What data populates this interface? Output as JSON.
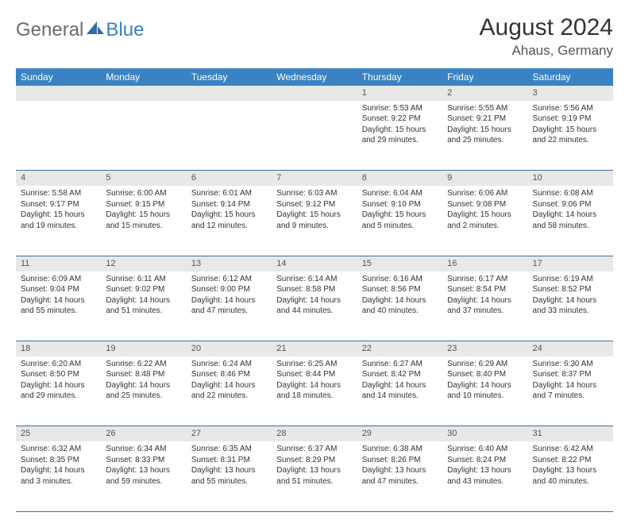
{
  "brand": {
    "part1": "General",
    "part2": "Blue"
  },
  "title": "August 2024",
  "location": "Ahaus, Germany",
  "header_bg": "#3b82c4",
  "header_fg": "#ffffff",
  "daynum_bg": "#e8e8e8",
  "day_headers": [
    "Sunday",
    "Monday",
    "Tuesday",
    "Wednesday",
    "Thursday",
    "Friday",
    "Saturday"
  ],
  "weeks": [
    [
      null,
      null,
      null,
      null,
      {
        "n": "1",
        "sr": "5:53 AM",
        "ss": "9:22 PM",
        "dl": "15 hours and 29 minutes."
      },
      {
        "n": "2",
        "sr": "5:55 AM",
        "ss": "9:21 PM",
        "dl": "15 hours and 25 minutes."
      },
      {
        "n": "3",
        "sr": "5:56 AM",
        "ss": "9:19 PM",
        "dl": "15 hours and 22 minutes."
      }
    ],
    [
      {
        "n": "4",
        "sr": "5:58 AM",
        "ss": "9:17 PM",
        "dl": "15 hours and 19 minutes."
      },
      {
        "n": "5",
        "sr": "6:00 AM",
        "ss": "9:15 PM",
        "dl": "15 hours and 15 minutes."
      },
      {
        "n": "6",
        "sr": "6:01 AM",
        "ss": "9:14 PM",
        "dl": "15 hours and 12 minutes."
      },
      {
        "n": "7",
        "sr": "6:03 AM",
        "ss": "9:12 PM",
        "dl": "15 hours and 9 minutes."
      },
      {
        "n": "8",
        "sr": "6:04 AM",
        "ss": "9:10 PM",
        "dl": "15 hours and 5 minutes."
      },
      {
        "n": "9",
        "sr": "6:06 AM",
        "ss": "9:08 PM",
        "dl": "15 hours and 2 minutes."
      },
      {
        "n": "10",
        "sr": "6:08 AM",
        "ss": "9:06 PM",
        "dl": "14 hours and 58 minutes."
      }
    ],
    [
      {
        "n": "11",
        "sr": "6:09 AM",
        "ss": "9:04 PM",
        "dl": "14 hours and 55 minutes."
      },
      {
        "n": "12",
        "sr": "6:11 AM",
        "ss": "9:02 PM",
        "dl": "14 hours and 51 minutes."
      },
      {
        "n": "13",
        "sr": "6:12 AM",
        "ss": "9:00 PM",
        "dl": "14 hours and 47 minutes."
      },
      {
        "n": "14",
        "sr": "6:14 AM",
        "ss": "8:58 PM",
        "dl": "14 hours and 44 minutes."
      },
      {
        "n": "15",
        "sr": "6:16 AM",
        "ss": "8:56 PM",
        "dl": "14 hours and 40 minutes."
      },
      {
        "n": "16",
        "sr": "6:17 AM",
        "ss": "8:54 PM",
        "dl": "14 hours and 37 minutes."
      },
      {
        "n": "17",
        "sr": "6:19 AM",
        "ss": "8:52 PM",
        "dl": "14 hours and 33 minutes."
      }
    ],
    [
      {
        "n": "18",
        "sr": "6:20 AM",
        "ss": "8:50 PM",
        "dl": "14 hours and 29 minutes."
      },
      {
        "n": "19",
        "sr": "6:22 AM",
        "ss": "8:48 PM",
        "dl": "14 hours and 25 minutes."
      },
      {
        "n": "20",
        "sr": "6:24 AM",
        "ss": "8:46 PM",
        "dl": "14 hours and 22 minutes."
      },
      {
        "n": "21",
        "sr": "6:25 AM",
        "ss": "8:44 PM",
        "dl": "14 hours and 18 minutes."
      },
      {
        "n": "22",
        "sr": "6:27 AM",
        "ss": "8:42 PM",
        "dl": "14 hours and 14 minutes."
      },
      {
        "n": "23",
        "sr": "6:29 AM",
        "ss": "8:40 PM",
        "dl": "14 hours and 10 minutes."
      },
      {
        "n": "24",
        "sr": "6:30 AM",
        "ss": "8:37 PM",
        "dl": "14 hours and 7 minutes."
      }
    ],
    [
      {
        "n": "25",
        "sr": "6:32 AM",
        "ss": "8:35 PM",
        "dl": "14 hours and 3 minutes."
      },
      {
        "n": "26",
        "sr": "6:34 AM",
        "ss": "8:33 PM",
        "dl": "13 hours and 59 minutes."
      },
      {
        "n": "27",
        "sr": "6:35 AM",
        "ss": "8:31 PM",
        "dl": "13 hours and 55 minutes."
      },
      {
        "n": "28",
        "sr": "6:37 AM",
        "ss": "8:29 PM",
        "dl": "13 hours and 51 minutes."
      },
      {
        "n": "29",
        "sr": "6:38 AM",
        "ss": "8:26 PM",
        "dl": "13 hours and 47 minutes."
      },
      {
        "n": "30",
        "sr": "6:40 AM",
        "ss": "8:24 PM",
        "dl": "13 hours and 43 minutes."
      },
      {
        "n": "31",
        "sr": "6:42 AM",
        "ss": "8:22 PM",
        "dl": "13 hours and 40 minutes."
      }
    ]
  ],
  "labels": {
    "sunrise": "Sunrise:",
    "sunset": "Sunset:",
    "daylight": "Daylight:"
  }
}
